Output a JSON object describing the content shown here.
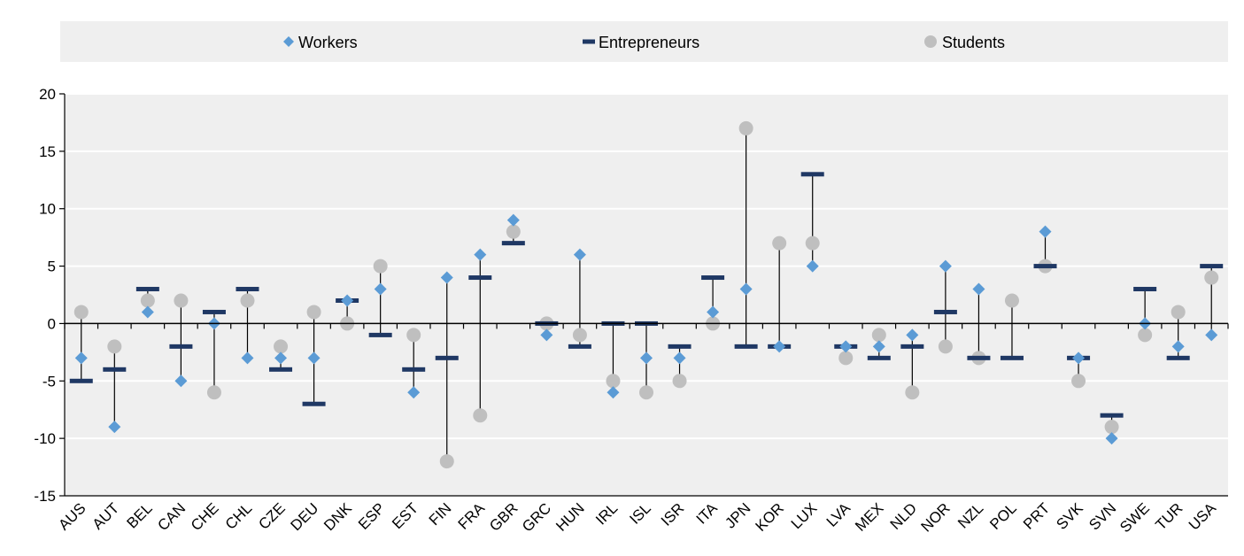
{
  "chart_data": {
    "type": "scatter",
    "title": "",
    "xlabel": "",
    "ylabel": "",
    "ylim": [
      -15,
      20
    ],
    "yticks": [
      20,
      15,
      10,
      5,
      0,
      -5,
      -10,
      -15
    ],
    "legend_position": "top",
    "colors": {
      "workers": "#5b9bd5",
      "entrepreneurs": "#1f3864",
      "students": "#bfbfbf"
    },
    "categories": [
      "AUS",
      "AUT",
      "BEL",
      "CAN",
      "CHE",
      "CHL",
      "CZE",
      "DEU",
      "DNK",
      "ESP",
      "EST",
      "FIN",
      "FRA",
      "GBR",
      "GRC",
      "HUN",
      "IRL",
      "ISL",
      "ISR",
      "ITA",
      "JPN",
      "KOR",
      "LUX",
      "LVA",
      "MEX",
      "NLD",
      "NOR",
      "NZL",
      "POL",
      "PRT",
      "SVK",
      "SVN",
      "SWE",
      "TUR",
      "USA"
    ],
    "series": [
      {
        "name": "Workers",
        "marker": "diamond",
        "values": [
          -3,
          -9,
          1,
          -5,
          0,
          -3,
          -3,
          -3,
          2,
          3,
          -6,
          4,
          6,
          9,
          -1,
          6,
          -6,
          -3,
          -3,
          1,
          3,
          -2,
          5,
          -2,
          -2,
          -1,
          5,
          3,
          null,
          8,
          -3,
          -10,
          0,
          -2,
          -1
        ]
      },
      {
        "name": "Entrepreneurs",
        "marker": "dash",
        "values": [
          -5,
          -4,
          3,
          -2,
          1,
          3,
          -4,
          -7,
          2,
          -1,
          -4,
          -3,
          4,
          7,
          0,
          -2,
          0,
          0,
          -2,
          4,
          -2,
          -2,
          13,
          -2,
          -3,
          -2,
          1,
          -3,
          -3,
          5,
          -3,
          -8,
          3,
          -3,
          5
        ]
      },
      {
        "name": "Students",
        "marker": "circle",
        "values": [
          1,
          -2,
          2,
          2,
          -6,
          2,
          -2,
          1,
          0,
          5,
          -1,
          -12,
          -8,
          8,
          0,
          -1,
          -5,
          -6,
          -5,
          0,
          17,
          7,
          7,
          -3,
          -1,
          -6,
          -2,
          -3,
          2,
          5,
          -5,
          -9,
          -1,
          1,
          4
        ]
      }
    ]
  }
}
